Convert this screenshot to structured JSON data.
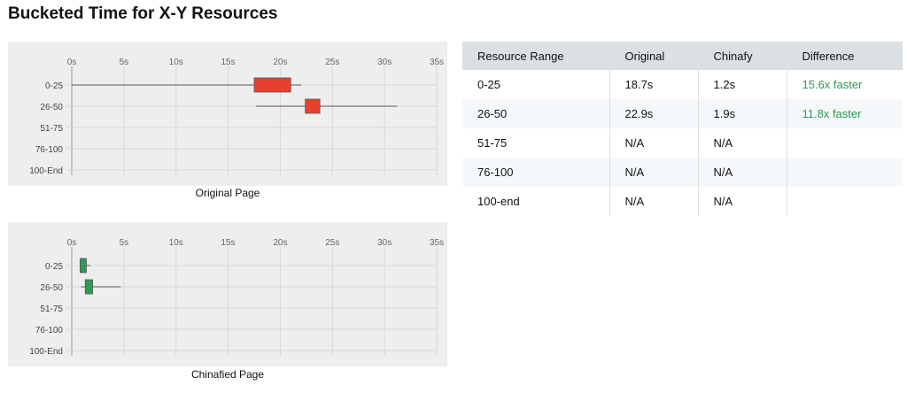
{
  "page_title": "Bucketed Time for X-Y Resources",
  "colors": {
    "original_box": "#e8402c",
    "chinafied_box": "#2f9a55",
    "difference_text": "#2e9950",
    "panel_bg": "#eeeeee",
    "table_header_bg": "#dbe0e4"
  },
  "chart_data": [
    {
      "type": "boxplot",
      "caption": "Original Page",
      "orientation": "horizontal",
      "xlim": [
        0,
        35
      ],
      "x_ticks": [
        "0s",
        "5s",
        "10s",
        "15s",
        "20s",
        "25s",
        "30s",
        "35s"
      ],
      "x_tick_values": [
        0,
        5,
        10,
        15,
        20,
        25,
        30,
        35
      ],
      "categories": [
        "0-25",
        "26-50",
        "51-75",
        "76-100",
        "100-End"
      ],
      "series": [
        {
          "category": "0-25",
          "min": 0,
          "q1": 17.5,
          "q3": 21.0,
          "max": 22.0
        },
        {
          "category": "26-50",
          "min": 17.7,
          "q1": 22.4,
          "q3": 23.8,
          "max": 31.2
        }
      ],
      "grid": true
    },
    {
      "type": "boxplot",
      "caption": "Chinafied Page",
      "orientation": "horizontal",
      "xlim": [
        0,
        35
      ],
      "x_ticks": [
        "0s",
        "5s",
        "10s",
        "15s",
        "20s",
        "25s",
        "30s",
        "35s"
      ],
      "x_tick_values": [
        0,
        5,
        10,
        15,
        20,
        25,
        30,
        35
      ],
      "categories": [
        "0-25",
        "26-50",
        "51-75",
        "76-100",
        "100-End"
      ],
      "series": [
        {
          "category": "0-25",
          "min": 0.8,
          "q1": 0.8,
          "q3": 1.4,
          "max": 1.8
        },
        {
          "category": "26-50",
          "min": 0.9,
          "q1": 1.3,
          "q3": 2.0,
          "max": 4.7
        }
      ],
      "grid": true
    }
  ],
  "table": {
    "headers": [
      "Resource Range",
      "Original",
      "Chinafy",
      "Difference"
    ],
    "rows": [
      [
        "0-25",
        "18.7s",
        "1.2s",
        "15.6x faster"
      ],
      [
        "26-50",
        "22.9s",
        "1.9s",
        "11.8x faster"
      ],
      [
        "51-75",
        "N/A",
        "N/A",
        ""
      ],
      [
        "76-100",
        "N/A",
        "N/A",
        ""
      ],
      [
        "100-end",
        "N/A",
        "N/A",
        ""
      ]
    ]
  }
}
